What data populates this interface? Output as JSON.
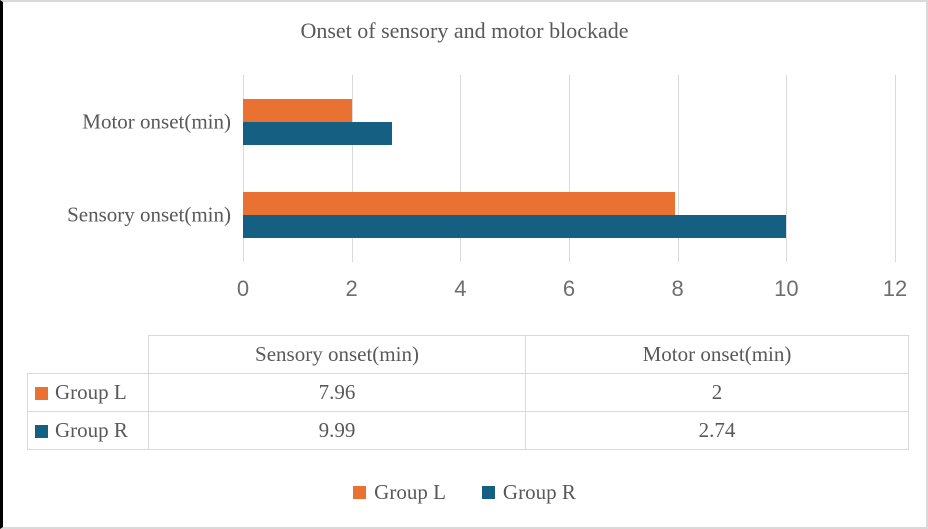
{
  "chart_data": {
    "type": "bar",
    "orientation": "horizontal",
    "title": "Onset of sensory and motor blockade",
    "categories": [
      "Motor onset(min)",
      "Sensory onset(min)"
    ],
    "series": [
      {
        "name": "Group L",
        "color": "#E97132",
        "values": [
          2,
          7.96
        ]
      },
      {
        "name": "Group R",
        "color": "#156082",
        "values": [
          2.74,
          9.99
        ]
      }
    ],
    "xlabel": "",
    "ylabel": "",
    "xlim": [
      0,
      12
    ],
    "xticks": [
      0,
      2,
      4,
      6,
      8,
      10,
      12
    ],
    "grid": true,
    "legend_position": "bottom"
  },
  "table": {
    "corner_label": "",
    "col_headers": [
      "Sensory onset(min)",
      "Motor onset(min)"
    ],
    "rows": [
      {
        "label": "Group L",
        "swatch_color": "#E97132",
        "values": [
          "7.96",
          "2"
        ]
      },
      {
        "label": "Group R",
        "swatch_color": "#156082",
        "values": [
          "9.99",
          "2.74"
        ]
      }
    ]
  },
  "legend": {
    "items": [
      {
        "label": "Group L",
        "color": "#E97132"
      },
      {
        "label": "Group R",
        "color": "#156082"
      }
    ]
  },
  "colors": {
    "gridline": "#d9d9d9",
    "table_border": "#d9d9d9",
    "text": "#595959",
    "axis_text": "#6e6e6e",
    "frame_left_border": "#000000"
  }
}
